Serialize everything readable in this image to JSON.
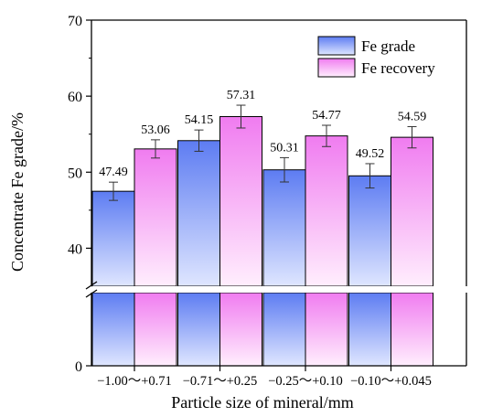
{
  "chart_data": {
    "type": "bar",
    "title": "",
    "xlabel": "Particle size of mineral/mm",
    "ylabel": "Concentrate Fe grade/%",
    "categories": [
      "−1.00～+0.71",
      "−0.71～+0.25",
      "−0.25～+0.10",
      "−0.10～+0.045"
    ],
    "series": [
      {
        "name": "Fe grade",
        "values": [
          47.49,
          54.15,
          50.31,
          49.52
        ],
        "errors": [
          1.2,
          1.4,
          1.6,
          1.6
        ],
        "labels": [
          "47.49",
          "54.15",
          "50.31",
          "49.52"
        ],
        "color_top": "#5d7cf2",
        "color_bottom": "#dfe6ff"
      },
      {
        "name": "Fe recovery",
        "values": [
          53.06,
          57.31,
          54.77,
          54.59
        ],
        "errors": [
          1.2,
          1.5,
          1.4,
          1.4
        ],
        "labels": [
          "53.06",
          "57.31",
          "54.77",
          "54.59"
        ],
        "color_top": "#f07cf0",
        "color_bottom": "#ffeefd"
      }
    ],
    "y_axis_break": [
      0,
      35
    ],
    "upper_segment_range": [
      35,
      70
    ],
    "upper_ticks": [
      "40",
      "50",
      "60",
      "70"
    ],
    "lower_ticks": [
      "0"
    ],
    "grid": false,
    "legend_position": "top-right"
  }
}
